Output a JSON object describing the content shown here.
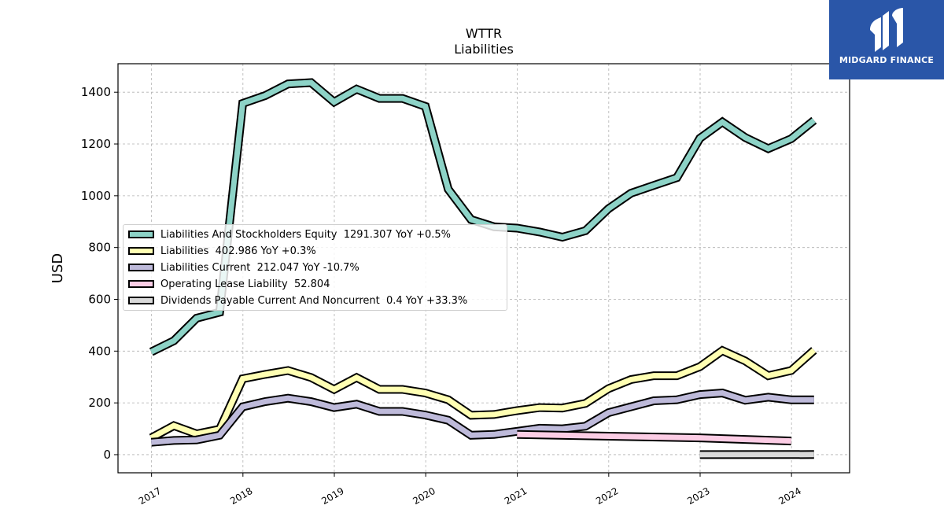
{
  "chart_data": {
    "type": "line",
    "title": "WTTR",
    "subtitle": "Liabilities",
    "ylabel": "USD",
    "xlabel": "",
    "ylim": [
      -70,
      1510
    ],
    "xlim": [
      "2016-08-20",
      "2024-08-20"
    ],
    "yticks": [
      0,
      200,
      400,
      600,
      800,
      1000,
      1200,
      1400
    ],
    "xticks": [
      "2017",
      "2018",
      "2019",
      "2020",
      "2021",
      "2022",
      "2023",
      "2024"
    ],
    "grid": true,
    "legend_position": "center-left",
    "series": [
      {
        "name": "Liabilities And Stockholders Equity",
        "legend": "Liabilities And Stockholders Equity  1291.307 YoY +0.5%",
        "color": "#8dd3c7",
        "x": [
          "2016-12-31",
          "2017-03-31",
          "2017-06-30",
          "2017-09-30",
          "2017-12-31",
          "2018-03-31",
          "2018-06-30",
          "2018-09-30",
          "2018-12-31",
          "2019-03-31",
          "2019-06-30",
          "2019-09-30",
          "2019-12-31",
          "2020-03-31",
          "2020-06-30",
          "2020-09-30",
          "2020-12-31",
          "2021-03-31",
          "2021-06-30",
          "2021-09-30",
          "2021-12-31",
          "2022-03-31",
          "2022-06-30",
          "2022-09-30",
          "2022-12-31",
          "2023-03-31",
          "2023-06-30",
          "2023-09-30",
          "2023-12-31",
          "2024-03-31"
        ],
        "values": [
          397,
          440,
          527,
          550,
          1357,
          1387,
          1432,
          1437,
          1362,
          1412,
          1376,
          1376,
          1345,
          1025,
          908,
          880,
          875,
          860,
          840,
          865,
          950,
          1010,
          1040,
          1070,
          1222,
          1285,
          1225,
          1182,
          1220,
          1291.307
        ]
      },
      {
        "name": "Liabilities",
        "legend": "Liabilities  402.986 YoY +0.3%",
        "color": "#ffffb3",
        "x": [
          "2016-12-31",
          "2017-03-31",
          "2017-06-30",
          "2017-09-30",
          "2017-12-31",
          "2018-03-31",
          "2018-06-30",
          "2018-09-30",
          "2018-12-31",
          "2019-03-31",
          "2019-06-30",
          "2019-09-30",
          "2019-12-31",
          "2020-03-31",
          "2020-06-30",
          "2020-09-30",
          "2020-12-31",
          "2021-03-31",
          "2021-06-30",
          "2021-09-30",
          "2021-12-31",
          "2022-03-31",
          "2022-06-30",
          "2022-09-30",
          "2022-12-31",
          "2023-03-31",
          "2023-06-30",
          "2023-09-30",
          "2023-12-31",
          "2024-03-31"
        ],
        "values": [
          65,
          112,
          80,
          98,
          293,
          310,
          325,
          298,
          252,
          298,
          252,
          252,
          238,
          212,
          152,
          155,
          170,
          182,
          180,
          198,
          255,
          290,
          305,
          305,
          340,
          402,
          362,
          305,
          325,
          402.986
        ]
      },
      {
        "name": "Liabilities Current",
        "legend": "Liabilities Current  212.047 YoY -10.7%",
        "color": "#bebada",
        "x": [
          "2016-12-31",
          "2017-03-31",
          "2017-06-30",
          "2017-09-30",
          "2017-12-31",
          "2018-03-31",
          "2018-06-30",
          "2018-09-30",
          "2018-12-31",
          "2019-03-31",
          "2019-06-30",
          "2019-09-30",
          "2019-12-31",
          "2020-03-31",
          "2020-06-30",
          "2020-09-30",
          "2020-12-31",
          "2021-03-31",
          "2021-06-30",
          "2021-09-30",
          "2021-12-31",
          "2022-03-31",
          "2022-06-30",
          "2022-09-30",
          "2022-12-31",
          "2023-03-31",
          "2023-06-30",
          "2023-09-30",
          "2023-12-31",
          "2024-03-31"
        ],
        "values": [
          48,
          55,
          57,
          75,
          185,
          205,
          218,
          205,
          182,
          195,
          167,
          167,
          153,
          133,
          75,
          78,
          90,
          102,
          100,
          110,
          162,
          185,
          208,
          212,
          232,
          238,
          210,
          222,
          212,
          212.047
        ]
      },
      {
        "name": "Operating Lease Liability",
        "legend": "Operating Lease Liability  52.804",
        "color": "#fccde5",
        "x": [
          "2020-12-31",
          "2022-12-31",
          "2023-12-31"
        ],
        "values": [
          78,
          65,
          52.804
        ]
      },
      {
        "name": "Dividends Payable Current And Noncurrent",
        "legend": "Dividends Payable Current And Noncurrent  0.4 YoY +33.3%",
        "color": "#d9d9d9",
        "x": [
          "2022-12-31",
          "2024-03-31"
        ],
        "values": [
          0.3,
          0.4
        ]
      }
    ]
  },
  "brand": {
    "name": "MIDGARD FINANCE",
    "bg_color": "#2a56a8"
  }
}
